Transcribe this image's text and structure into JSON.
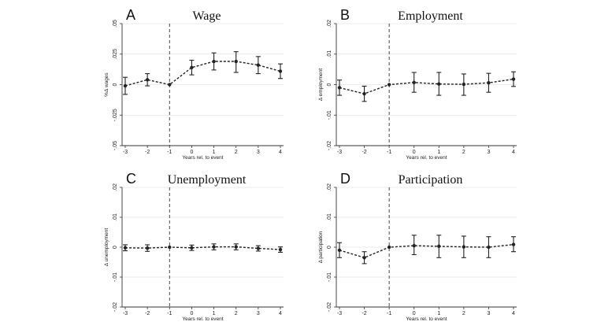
{
  "chart_data": [
    {
      "panel": "A",
      "type": "line",
      "title": "Wage",
      "xlabel": "Years rel. to event",
      "ylabel": "%Δ wages",
      "x": [
        -3,
        -2,
        -1,
        0,
        1,
        2,
        3,
        4
      ],
      "x_ticks": [
        "-3",
        "-2",
        "-1",
        "0",
        "1",
        "2",
        "3",
        "4"
      ],
      "ylim": [
        -0.05,
        0.05
      ],
      "y_ticks": [
        ".05",
        ".025",
        "0",
        "-.025",
        "-.05"
      ],
      "y_tick_values": [
        0.05,
        0.025,
        0,
        -0.025,
        -0.05
      ],
      "event_line_x": -1,
      "grid": true,
      "series": [
        {
          "values": [
            -0.001,
            0.004,
            0.0,
            0.014,
            0.019,
            0.019,
            0.016,
            0.011
          ],
          "ci_low": [
            -0.008,
            -0.001,
            0.0,
            0.008,
            0.012,
            0.01,
            0.009,
            0.005
          ],
          "ci_high": [
            0.006,
            0.009,
            0.0,
            0.02,
            0.026,
            0.027,
            0.023,
            0.017
          ]
        }
      ]
    },
    {
      "panel": "B",
      "type": "line",
      "title": "Employment",
      "xlabel": "Years rel. to event",
      "ylabel": "Δ employment",
      "x": [
        -3,
        -2,
        -1,
        0,
        1,
        2,
        3,
        4
      ],
      "x_ticks": [
        "-3",
        "-2",
        "-1",
        "0",
        "1",
        "2",
        "3",
        "4"
      ],
      "ylim": [
        -0.02,
        0.02
      ],
      "y_ticks": [
        ".02",
        ".01",
        "0",
        "-.01",
        "-.02"
      ],
      "y_tick_values": [
        0.02,
        0.01,
        0,
        -0.01,
        -0.02
      ],
      "event_line_x": -1,
      "grid": true,
      "series": [
        {
          "values": [
            -0.001,
            -0.003,
            0.0,
            0.0007,
            0.0002,
            0.0001,
            0.0006,
            0.0018
          ],
          "ci_low": [
            -0.0035,
            -0.0055,
            0.0,
            -0.0025,
            -0.0035,
            -0.0035,
            -0.0025,
            -0.0006
          ],
          "ci_high": [
            0.0015,
            -0.0005,
            0.0,
            0.004,
            0.004,
            0.0035,
            0.0037,
            0.0042
          ]
        }
      ]
    },
    {
      "panel": "C",
      "type": "line",
      "title": "Unemployment",
      "xlabel": "Years rel. to event",
      "ylabel": "Δ unemployment",
      "x": [
        -3,
        -2,
        -1,
        0,
        1,
        2,
        3,
        4
      ],
      "x_ticks": [
        "-3",
        "-2",
        "-1",
        "0",
        "1",
        "2",
        "3",
        "4"
      ],
      "ylim": [
        -0.02,
        0.02
      ],
      "y_ticks": [
        ".02",
        ".01",
        "0",
        "-.01",
        "-.02"
      ],
      "y_tick_values": [
        0.02,
        0.01,
        0,
        -0.01,
        -0.02
      ],
      "event_line_x": -1,
      "grid": true,
      "series": [
        {
          "values": [
            -0.0002,
            -0.0003,
            0.0,
            -0.0002,
            0.0001,
            0.0001,
            -0.0004,
            -0.0008
          ],
          "ci_low": [
            -0.0012,
            -0.0014,
            0.0,
            -0.0011,
            -0.0009,
            -0.0009,
            -0.0013,
            -0.0017
          ],
          "ci_high": [
            0.0008,
            0.0008,
            0.0,
            0.0007,
            0.0011,
            0.0011,
            0.0005,
            0.0001
          ]
        }
      ]
    },
    {
      "panel": "D",
      "type": "line",
      "title": "Participation",
      "xlabel": "Years rel. to event",
      "ylabel": "Δ participation",
      "x": [
        -3,
        -2,
        -1,
        0,
        1,
        2,
        3,
        4
      ],
      "x_ticks": [
        "-3",
        "-2",
        "-1",
        "0",
        "1",
        "2",
        "3",
        "4"
      ],
      "ylim": [
        -0.02,
        0.02
      ],
      "y_ticks": [
        ".02",
        ".01",
        "0",
        "-.01",
        "-.02"
      ],
      "y_tick_values": [
        0.02,
        0.01,
        0,
        -0.01,
        -0.02
      ],
      "event_line_x": -1,
      "grid": true,
      "series": [
        {
          "values": [
            -0.001,
            -0.0035,
            0.0,
            0.0005,
            0.0003,
            0.0001,
            0.0,
            0.0009
          ],
          "ci_low": [
            -0.0035,
            -0.0055,
            0.0,
            -0.0025,
            -0.0035,
            -0.0035,
            -0.0035,
            -0.0015
          ],
          "ci_high": [
            0.0015,
            -0.0015,
            0.0,
            0.004,
            0.004,
            0.0037,
            0.0035,
            0.0035
          ]
        }
      ]
    }
  ]
}
